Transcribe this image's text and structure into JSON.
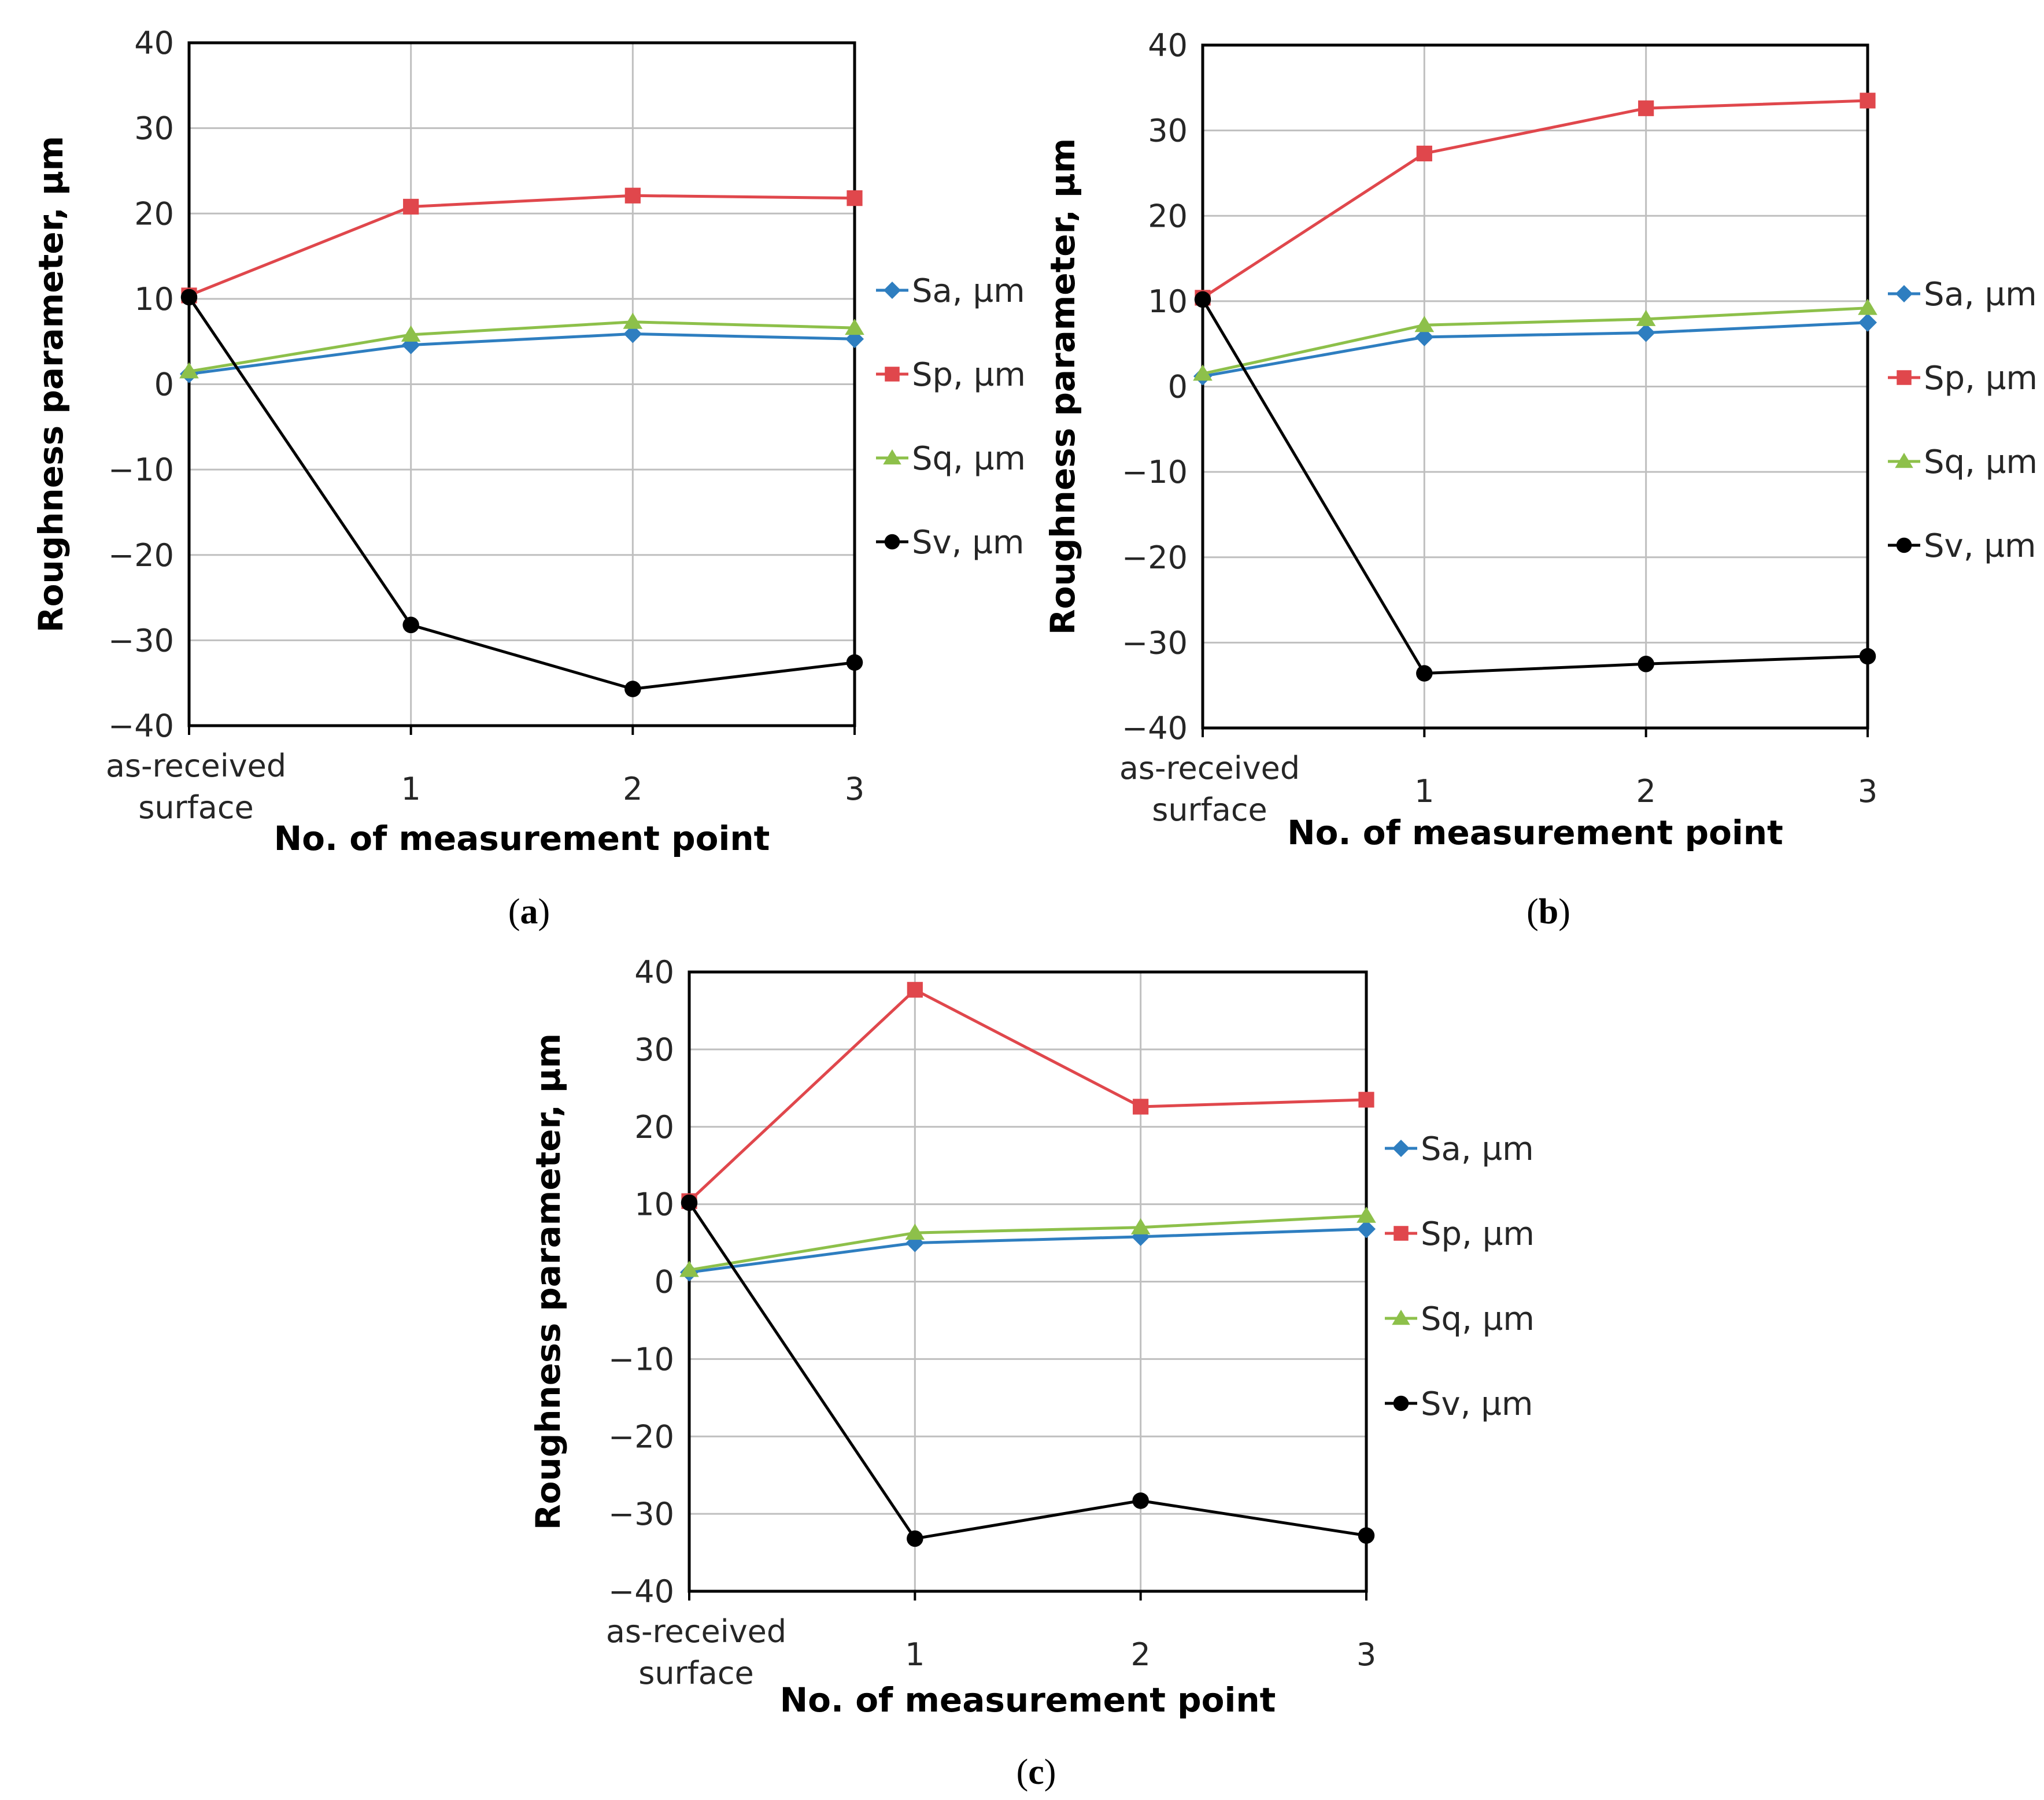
{
  "colors": {
    "Sa": "#2E7EC0",
    "Sp": "#E0474C",
    "Sq": "#8DC04A",
    "Sv": "#000000"
  },
  "legend_markers": {
    "Sa": "diamond",
    "Sp": "square",
    "Sq": "triangle",
    "Sv": "circle"
  },
  "chart_data": [
    {
      "id": "a",
      "type": "line",
      "caption": "a",
      "caption_open": "(",
      "caption_close": ")",
      "categories": [
        [
          "as-received",
          "surface"
        ],
        [
          "1"
        ],
        [
          "2"
        ],
        [
          "3"
        ]
      ],
      "xlabel": "No. of measurement point",
      "ylabel": "Roughness parameter, µm",
      "ylim": [
        -40,
        40
      ],
      "yticks": [
        "40",
        "30",
        "20",
        "10",
        "0",
        "−10",
        "−20",
        "−30",
        "−40"
      ],
      "grid": true,
      "legend_position": "right",
      "series": [
        {
          "key": "Sa",
          "name": "Sa, µm",
          "values": [
            1.2,
            4.6,
            5.9,
            5.3
          ]
        },
        {
          "key": "Sp",
          "name": "Sp, µm",
          "values": [
            10.4,
            20.8,
            22.1,
            21.8
          ]
        },
        {
          "key": "Sq",
          "name": "Sq, µm",
          "values": [
            1.5,
            5.8,
            7.3,
            6.6
          ]
        },
        {
          "key": "Sv",
          "name": "Sv, µm",
          "values": [
            10.2,
            -28.2,
            -35.7,
            -32.6
          ]
        }
      ]
    },
    {
      "id": "b",
      "type": "line",
      "caption": "b",
      "caption_open": "(",
      "caption_close": ")",
      "categories": [
        [
          "as-received",
          "surface"
        ],
        [
          "1"
        ],
        [
          "2"
        ],
        [
          "3"
        ]
      ],
      "xlabel": "No. of measurement point",
      "ylabel": "Roughness parameter, µm",
      "ylim": [
        -40,
        40
      ],
      "yticks": [
        "40",
        "30",
        "20",
        "10",
        "0",
        "−10",
        "−20",
        "−30",
        "−40"
      ],
      "grid": true,
      "legend_position": "right",
      "series": [
        {
          "key": "Sa",
          "name": "Sa, µm",
          "values": [
            1.2,
            5.8,
            6.3,
            7.5
          ]
        },
        {
          "key": "Sp",
          "name": "Sp, µm",
          "values": [
            10.4,
            27.3,
            32.6,
            33.5
          ]
        },
        {
          "key": "Sq",
          "name": "Sq, µm",
          "values": [
            1.5,
            7.2,
            7.9,
            9.2
          ]
        },
        {
          "key": "Sv",
          "name": "Sv, µm",
          "values": [
            10.2,
            -33.6,
            -32.5,
            -31.6
          ]
        }
      ]
    },
    {
      "id": "c",
      "type": "line",
      "caption": "c",
      "caption_open": "(",
      "caption_close": ")",
      "categories": [
        [
          "as-received",
          "surface"
        ],
        [
          "1"
        ],
        [
          "2"
        ],
        [
          "3"
        ]
      ],
      "xlabel": "No. of measurement point",
      "ylabel": "Roughness parameter, µm",
      "ylim": [
        -40,
        40
      ],
      "yticks": [
        "40",
        "30",
        "20",
        "10",
        "0",
        "−10",
        "−20",
        "−30",
        "−40"
      ],
      "grid": true,
      "legend_position": "right",
      "series": [
        {
          "key": "Sa",
          "name": "Sa, µm",
          "values": [
            1.2,
            5.0,
            5.8,
            6.8
          ]
        },
        {
          "key": "Sp",
          "name": "Sp, µm",
          "values": [
            10.4,
            37.7,
            22.6,
            23.5
          ]
        },
        {
          "key": "Sq",
          "name": "Sq, µm",
          "values": [
            1.5,
            6.3,
            7.0,
            8.5
          ]
        },
        {
          "key": "Sv",
          "name": "Sv, µm",
          "values": [
            10.2,
            -33.2,
            -28.3,
            -32.8
          ]
        }
      ]
    }
  ]
}
